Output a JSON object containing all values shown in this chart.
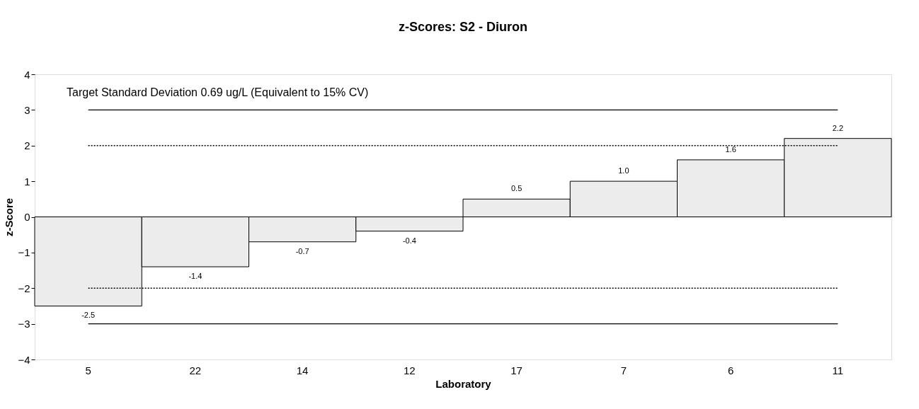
{
  "chart_data": {
    "type": "bar",
    "title": "z-Scores: S2 - Diuron",
    "xlabel": "Laboratory",
    "ylabel": "z-Score",
    "categories": [
      "5",
      "22",
      "14",
      "12",
      "17",
      "7",
      "6",
      "11"
    ],
    "values": [
      -2.5,
      -1.4,
      -0.7,
      -0.4,
      0.5,
      1.0,
      1.6,
      2.2
    ],
    "color": "#ececec",
    "value_labels": [
      "-2.5",
      "-1.4",
      "-0.7",
      "-0.4",
      "0.5",
      "1.0",
      "1.6",
      "2.2"
    ],
    "ylim": [
      -4,
      4
    ],
    "yticks": [
      -4,
      -3,
      -2,
      -1,
      0,
      1,
      2,
      3,
      4
    ],
    "grid": false,
    "ref_lines": [
      {
        "axis": "y",
        "value": 3,
        "line_style": "solid",
        "color": "#000000"
      },
      {
        "axis": "y",
        "value": 2,
        "line_style": "dotted",
        "color": "#000000"
      },
      {
        "axis": "y",
        "value": -2,
        "line_style": "dotted",
        "color": "#000000"
      },
      {
        "axis": "y",
        "value": -3,
        "line_style": "solid",
        "color": "#000000"
      }
    ],
    "annotations": [
      "Target Standard Deviation 0.69 ug/L  (Equivalent to 15% CV)"
    ]
  }
}
